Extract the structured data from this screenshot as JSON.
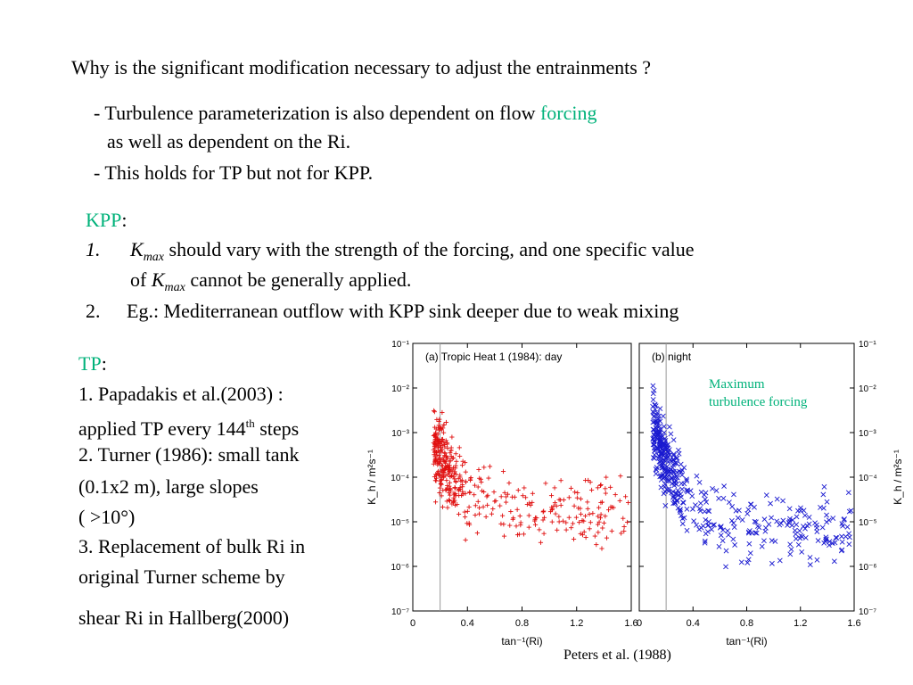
{
  "question": "Why is the significant modification necessary to adjust the entrainments ?",
  "points": {
    "p1a": "- Turbulence parameterization is also dependent on flow ",
    "p1b": "forcing",
    "p1c": "as well as dependent on the Ri.",
    "p2": "- This holds for TP but not for KPP."
  },
  "kpp": {
    "heading": "KPP",
    "colon": ":",
    "item1_num": "1.",
    "item1_sym": "K",
    "item1_sub": "max",
    "item1_text": " should vary with the strength of the forcing, and one specific value",
    "item1_cont_a": "of ",
    "item1_cont_sym": "K",
    "item1_cont_sub": "max",
    "item1_cont_b": " cannot be generally applied.",
    "item2_num": "2.",
    "item2_text": "Eg.: Mediterranean outflow with KPP sink deeper due to weak mixing"
  },
  "tp": {
    "heading": "TP",
    "colon": ":",
    "l1": "1.    Papadakis et al.(2003) :",
    "l2a": "applied TP every 144",
    "l2sup": "th",
    "l2b": " steps",
    "l3": "2. Turner (1986): small tank",
    "l4": "(0.1x2 m), large slopes",
    "l5": "( >10°)",
    "l6": "3. Replacement of bulk Ri in",
    "l7": "original Turner scheme by",
    "l8": "shear Ri in Hallberg(2000)"
  },
  "annotation": {
    "l1": "Maximum",
    "l2": "turbulence forcing"
  },
  "citation": "Peters et al. (1988)",
  "colors": {
    "accent": "#00b27a",
    "day": "#e01010",
    "night": "#1a1ad0"
  },
  "chart_data": {
    "type": "scatter",
    "panels": [
      {
        "title": "(a) Tropic Heat 1 (1984): day",
        "marker": "+",
        "color": "#e01010"
      },
      {
        "title": "(b) night",
        "marker": "x",
        "color": "#1a1ad0"
      }
    ],
    "xlabel": "tan⁻¹(Ri)",
    "ylabel": "K_h / m²s⁻¹",
    "xlim": [
      0,
      1.6
    ],
    "ylim": [
      1e-07,
      0.1
    ],
    "yscale": "log",
    "xticks": [
      "0",
      "0.4",
      "0.8",
      "1.2",
      "1.6"
    ],
    "yticks": [
      "10⁻¹",
      "10⁻²",
      "10⁻³",
      "10⁻⁴",
      "10⁻⁵",
      "10⁻⁶",
      "10⁻⁷"
    ],
    "reference_x": 0.2
  }
}
